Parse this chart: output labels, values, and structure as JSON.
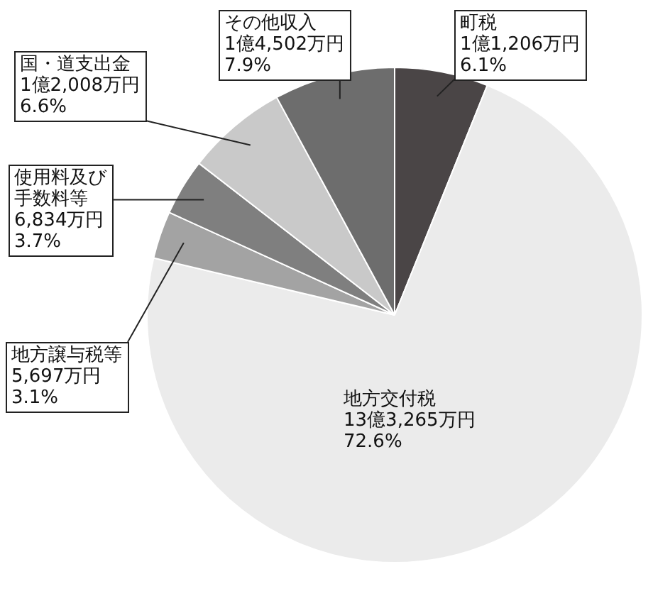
{
  "chart_data": {
    "type": "pie",
    "categories": [
      "町税",
      "地方交付税",
      "地方譲与税等",
      "使用料及び手数料等",
      "国・道支出金",
      "その他収入"
    ],
    "values": [
      6.1,
      72.6,
      3.1,
      3.7,
      6.6,
      7.9
    ],
    "colors": [
      "#4a4546",
      "#ebebeb",
      "#a3a3a3",
      "#7f7f7f",
      "#c9c9c9",
      "#6d6d6d"
    ],
    "value_labels": [
      "1億1,206万円\n6.1%",
      "13億3,265万円\n72.6%",
      "5,697万円\n3.1%",
      "6,834万円\n3.7%",
      "1億2,008万円\n6.6%",
      "1億4,502万円\n7.9%"
    ]
  }
}
